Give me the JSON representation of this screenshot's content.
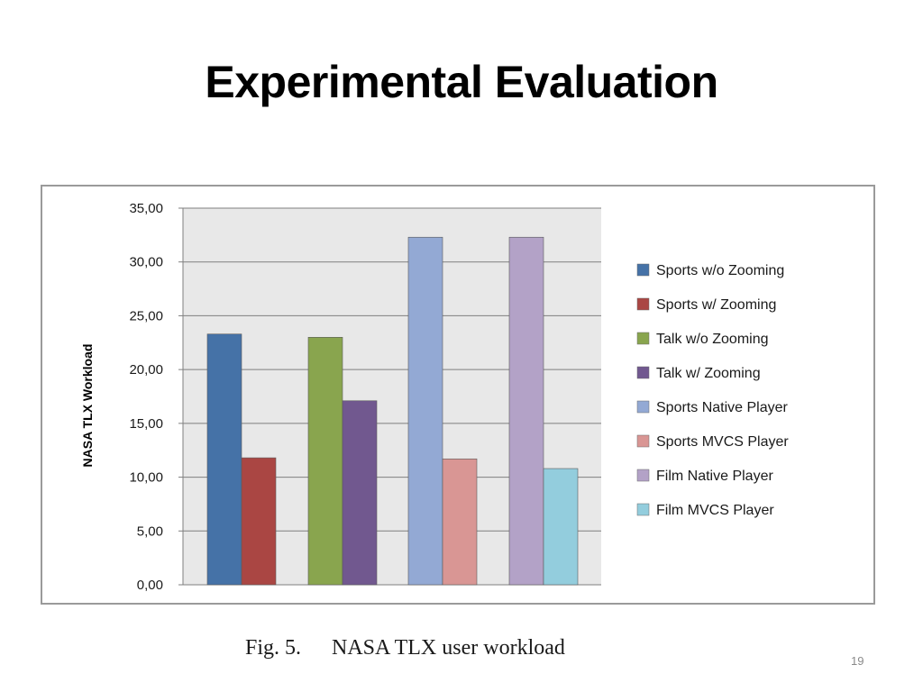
{
  "slide": {
    "title": "Experimental Evaluation",
    "caption_fig": "Fig. 5.",
    "caption_text": "NASA TLX user workload",
    "page_number": "19"
  },
  "chart_data": {
    "type": "bar",
    "title": "",
    "xlabel": "",
    "ylabel": "NASA TLX Workload",
    "ylim": [
      0,
      35
    ],
    "y_ticks": [
      "0,00",
      "5,00",
      "10,00",
      "15,00",
      "20,00",
      "25,00",
      "30,00",
      "35,00"
    ],
    "grid": true,
    "legend_position": "right",
    "groups": [
      [
        "Sports w/o Zooming",
        "Sports w/ Zooming"
      ],
      [
        "Talk w/o Zooming",
        "Talk w/ Zooming"
      ],
      [
        "Sports Native Player",
        "Sports MVCS Player"
      ],
      [
        "Film Native Player",
        "Film MVCS Player"
      ]
    ],
    "series": [
      {
        "name": "Sports w/o Zooming",
        "value": 23.3,
        "color": "#4572a7"
      },
      {
        "name": "Sports w/ Zooming",
        "value": 11.8,
        "color": "#aa4643"
      },
      {
        "name": "Talk w/o Zooming",
        "value": 23.0,
        "color": "#89a54e"
      },
      {
        "name": "Talk w/ Zooming",
        "value": 17.1,
        "color": "#71588f"
      },
      {
        "name": "Sports Native Player",
        "value": 32.3,
        "color": "#93a9d4"
      },
      {
        "name": "Sports MVCS Player",
        "value": 11.7,
        "color": "#d99694"
      },
      {
        "name": "Film Native Player",
        "value": 32.3,
        "color": "#b3a2c7"
      },
      {
        "name": "Film MVCS Player",
        "value": 10.8,
        "color": "#93cddd"
      }
    ]
  }
}
